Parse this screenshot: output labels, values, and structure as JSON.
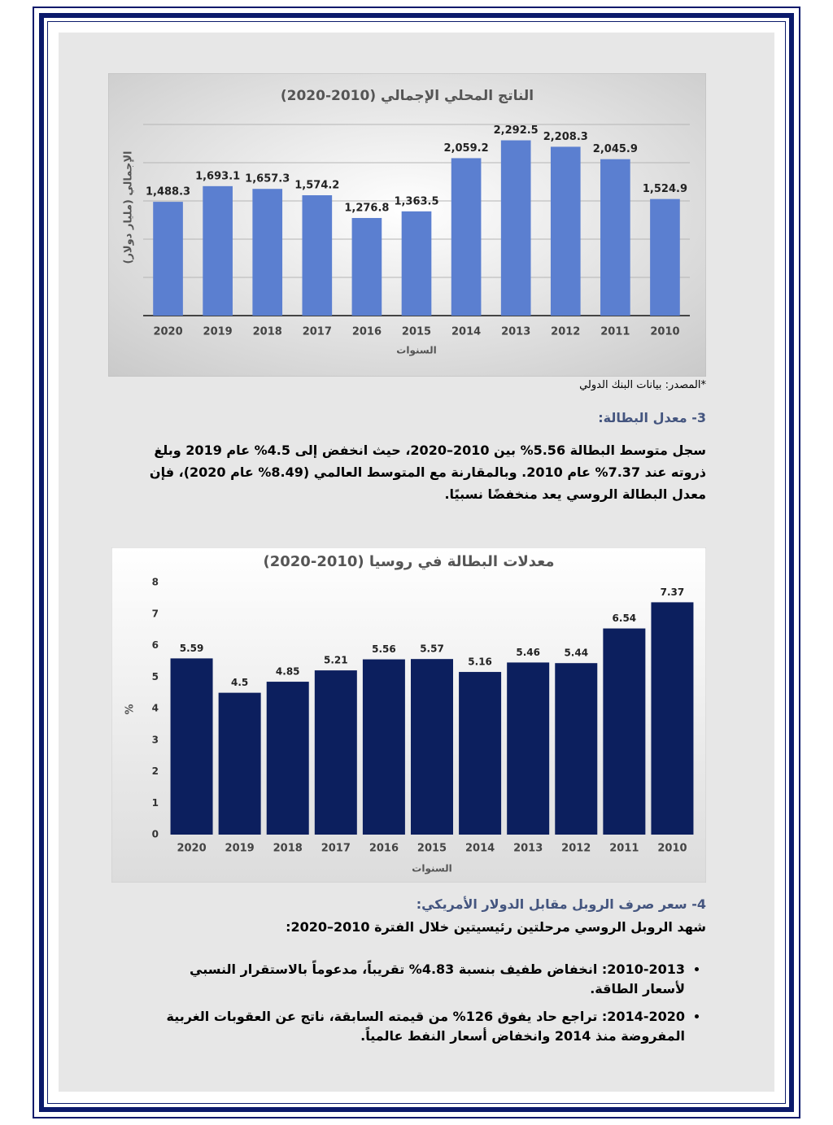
{
  "chart_data": [
    {
      "type": "bar",
      "title": "الناتج المحلي الإجمالي (2010-2020)",
      "y_label": "الإجمالي (مليار دولار)",
      "x_label": "السنوات",
      "categories": [
        "2020",
        "2019",
        "2018",
        "2017",
        "2016",
        "2015",
        "2014",
        "2013",
        "2012",
        "2011",
        "2010"
      ],
      "values": [
        1488.3,
        1693.1,
        1657.3,
        1574.2,
        1276.8,
        1363.5,
        2059.2,
        2292.5,
        2208.3,
        2045.9,
        1524.9
      ],
      "value_labels": [
        "1,488.3",
        "1,693.1",
        "1,657.3",
        "1,574.2",
        "1,276.8",
        "1,363.5",
        "2,059.2",
        "2,292.5",
        "2,208.3",
        "2,045.9",
        "1,524.9"
      ],
      "color": "#5b7fd0",
      "ylim": [
        0,
        2500
      ],
      "grid": [
        500,
        1000,
        1500,
        2000,
        2500
      ]
    },
    {
      "type": "bar",
      "title": "معدلات البطالة في روسيا (2010-2020)",
      "y_label": "%",
      "x_label": "السنوات",
      "categories": [
        "2020",
        "2019",
        "2018",
        "2017",
        "2016",
        "2015",
        "2014",
        "2013",
        "2012",
        "2011",
        "2010"
      ],
      "values": [
        5.59,
        4.5,
        4.85,
        5.21,
        5.56,
        5.57,
        5.16,
        5.46,
        5.44,
        6.54,
        7.37
      ],
      "color": "#0c1f5e",
      "ylim": [
        0,
        8
      ],
      "yticks": [
        0,
        1,
        2,
        3,
        4,
        5,
        6,
        7,
        8
      ]
    }
  ],
  "source": "*المصدر: بيانات البنك الدولي",
  "section3": {
    "heading": "3- معدل البطالة:",
    "paragraph": "سجل متوسط البطالة 5.56% بين 2010–2020، حيث انخفض إلى 4.5% عام 2019 وبلغ ذروته عند 7.37% عام 2010. وبالمقارنة مع المتوسط العالمي (8.49% عام 2020)، فإن معدل البطالة الروسي يعد منخفضًا نسبيًا."
  },
  "section4": {
    "heading": "4- سعر صرف الروبل مقابل الدولار الأمريكي:",
    "intro": "شهد الروبل الروسي مرحلتين رئيسيتين خلال الفترة 2010–2020:",
    "bullets": [
      "2010-2013: انخفاض طفيف بنسبة 4.83% تقريباً، مدعوماً بالاستقرار النسبي لأسعار الطاقة.",
      "2014-2020: تراجع حاد يفوق 126% من قيمته السابقة، ناتج عن العقوبات الغربية المفروضة منذ 2014 وانخفاض أسعار النفط عالمياً."
    ]
  }
}
